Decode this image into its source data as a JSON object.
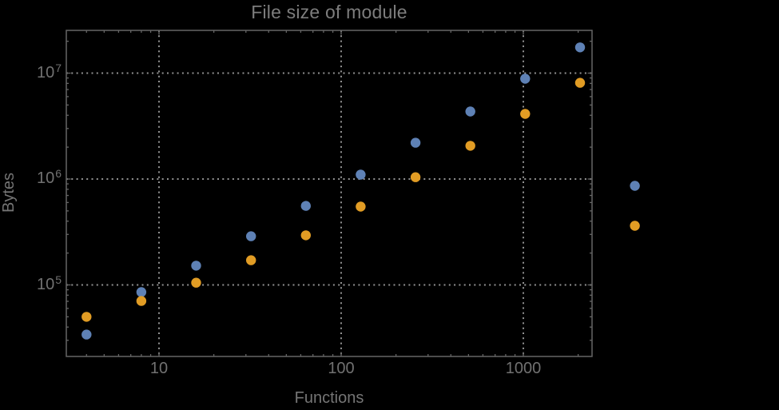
{
  "window": {
    "background": "#000000"
  },
  "palette": {
    "frame": "#656565",
    "grid": "#929292",
    "tick_label": "#717171",
    "axis_label": "#757575",
    "title": "#7d7d7d",
    "series_blue": "#5e81b5",
    "series_orange": "#e19c24"
  },
  "chart_data": {
    "type": "scatter",
    "title": "File size of module",
    "xlabel": "Functions",
    "ylabel": "Bytes",
    "x_scale": "log",
    "y_scale": "log",
    "xlim": [
      3.1,
      2380
    ],
    "ylim": [
      21000,
      25300000
    ],
    "grid": "dotted gridlines at decades only",
    "legend": "none",
    "x": [
      4,
      8,
      16,
      32,
      64,
      128,
      256,
      512,
      1024,
      2048,
      4096
    ],
    "series": [
      {
        "name": "blue",
        "color": "#5e81b5",
        "values": [
          34000,
          85500,
          152000,
          288000,
          558000,
          1100000,
          2200000,
          4340000,
          8850000,
          17500000,
          863000
        ]
      },
      {
        "name": "orange",
        "color": "#e19c24",
        "values": [
          50000,
          70500,
          105000,
          171000,
          294000,
          549000,
          1040000,
          2060000,
          4120000,
          8110000,
          362000
        ]
      }
    ],
    "x_ticks": [
      {
        "value": 10,
        "label": "10"
      },
      {
        "value": 100,
        "label": "100"
      },
      {
        "value": 1000,
        "label": "1000"
      }
    ],
    "y_ticks": [
      {
        "value": 100000,
        "mantissa": "10",
        "exponent": "5"
      },
      {
        "value": 1000000,
        "mantissa": "10",
        "exponent": "6"
      },
      {
        "value": 10000000,
        "mantissa": "10",
        "exponent": "7"
      }
    ]
  }
}
